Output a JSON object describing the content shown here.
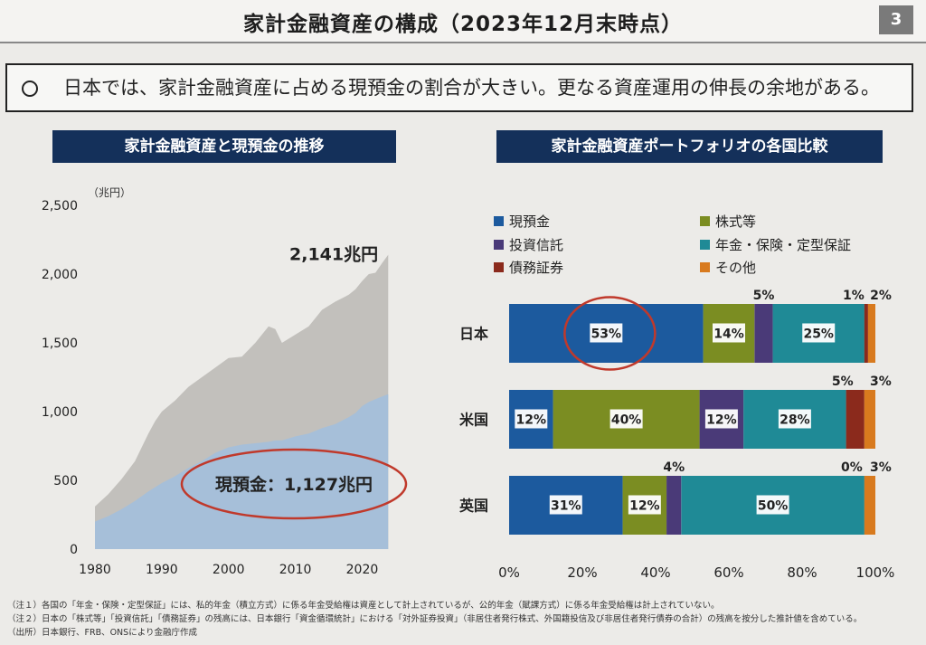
{
  "title": "家計金融資産の構成（2023年12月末時点）",
  "page_number": "3",
  "summary": "日本では、家計金融資産に占める現預金の割合が大きい。更なる資産運用の伸長の余地がある。",
  "colors": {
    "navy": "#14305a",
    "cash": "#1c5a9e",
    "stocks": "#7b8d22",
    "funds": "#4a3a78",
    "pension": "#1f8a96",
    "bonds": "#8b2a1c",
    "other": "#d87a1e",
    "total_area": "#c2c0bc",
    "cash_area": "#a6bfd9",
    "highlight": "#c0392b"
  },
  "chart_data": [
    {
      "type": "area",
      "panel_title": "家計金融資産と現預金の推移",
      "ylabel": "（兆円）",
      "ylim": [
        0,
        2500
      ],
      "yticks": [
        "0",
        "500",
        "1,000",
        "1,500",
        "2,000",
        "2,500"
      ],
      "xlim": [
        1980,
        2024
      ],
      "xticks": [
        "1980",
        "1990",
        "2000",
        "2010",
        "2020"
      ],
      "x": [
        1980,
        1982,
        1984,
        1986,
        1988,
        1989,
        1990,
        1992,
        1994,
        1996,
        1998,
        2000,
        2002,
        2004,
        2006,
        2007,
        2008,
        2010,
        2012,
        2014,
        2016,
        2018,
        2019,
        2020,
        2021,
        2022,
        2023,
        2023.9
      ],
      "series": [
        {
          "name": "家計金融資産",
          "values": [
            310,
            400,
            510,
            640,
            840,
            930,
            1000,
            1080,
            1180,
            1250,
            1320,
            1390,
            1400,
            1500,
            1620,
            1600,
            1500,
            1560,
            1620,
            1740,
            1800,
            1850,
            1890,
            1950,
            2000,
            2010,
            2080,
            2141
          ]
        },
        {
          "name": "現預金",
          "values": [
            200,
            240,
            290,
            350,
            420,
            450,
            480,
            530,
            590,
            640,
            700,
            740,
            760,
            770,
            780,
            790,
            790,
            820,
            840,
            880,
            910,
            960,
            990,
            1040,
            1070,
            1090,
            1110,
            1127
          ]
        }
      ],
      "annotations": {
        "total_label": "2,141兆円",
        "cash_label": "現預金：1,127兆円"
      }
    },
    {
      "type": "bar",
      "orientation": "horizontal",
      "stacked": true,
      "panel_title": "家計金融資産ポートフォリオの各国比較",
      "categories": [
        "日本",
        "米国",
        "英国"
      ],
      "xticks": [
        "0%",
        "20%",
        "40%",
        "60%",
        "80%",
        "100%"
      ],
      "xlim": [
        0,
        100
      ],
      "legend": [
        "現預金",
        "株式等",
        "投資信託",
        "年金・保険・定型保証",
        "債務証券",
        "その他"
      ],
      "series": [
        {
          "name": "現預金",
          "values": [
            53,
            12,
            31
          ]
        },
        {
          "name": "株式等",
          "values": [
            14,
            40,
            12
          ]
        },
        {
          "name": "投資信託",
          "values": [
            5,
            12,
            4
          ]
        },
        {
          "name": "年金・保険・定型保証",
          "values": [
            25,
            28,
            50
          ]
        },
        {
          "name": "債務証券",
          "values": [
            1,
            5,
            0
          ]
        },
        {
          "name": "その他",
          "values": [
            2,
            3,
            3
          ]
        }
      ]
    }
  ],
  "notes": [
    "（注１）各国の「年金・保険・定型保証」には、私的年金（積立方式）に係る年金受給権は資産として計上されているが、公的年金（賦課方式）に係る年金受給権は計上されていない。",
    "（注２）日本の「株式等」「投資信託」「債務証券」の残高には、日本銀行「資金循環統計」における「対外証券投資」（非居住者発行株式、外国籍投信及び非居住者発行債券の合計）の残高を按分した推計値を含めている。",
    "（出所）日本銀行、FRB、ONSにより金融庁作成"
  ]
}
